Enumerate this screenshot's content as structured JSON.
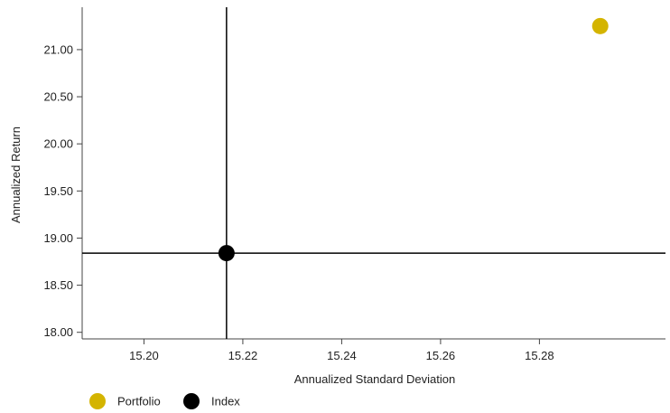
{
  "chart_data": {
    "type": "scatter",
    "title": "",
    "xlabel": "Annualized Standard Deviation",
    "ylabel": "Annualized Return",
    "xlim": [
      15.1875,
      15.3055
    ],
    "ylim": [
      17.93,
      21.45
    ],
    "x_ticks": [
      15.2,
      15.22,
      15.24,
      15.26,
      15.28
    ],
    "x_tick_labels": [
      "15.20",
      "15.22",
      "15.24",
      "15.26",
      "15.28"
    ],
    "y_ticks": [
      18.0,
      18.5,
      19.0,
      19.5,
      20.0,
      20.5,
      21.0
    ],
    "y_tick_labels": [
      "18.00",
      "18.50",
      "19.00",
      "19.50",
      "20.00",
      "20.50",
      "21.00"
    ],
    "grid": false,
    "legend_position": "bottom-left",
    "series": [
      {
        "name": "Portfolio",
        "x": [
          15.2923
        ],
        "y": [
          21.25
        ],
        "color": "#d4b400"
      },
      {
        "name": "Index",
        "x": [
          15.2167
        ],
        "y": [
          18.84
        ],
        "color": "#000000"
      }
    ],
    "reference_lines": {
      "x": 15.2167,
      "y": 18.84,
      "color": "#000000"
    },
    "colors": {
      "axis": "#444444",
      "text": "#222222"
    }
  }
}
